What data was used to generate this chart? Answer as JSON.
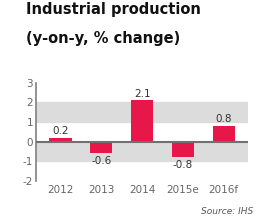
{
  "title_line1": "Industrial production",
  "title_line2": "(y-on-y, % change)",
  "categories": [
    "2012",
    "2013",
    "2014",
    "2015e",
    "2016f"
  ],
  "values": [
    0.2,
    -0.6,
    2.1,
    -0.8,
    0.8
  ],
  "bar_color": "#e8174a",
  "ylim": [
    -2,
    3
  ],
  "yticks": [
    -2,
    -1,
    0,
    1,
    2,
    3
  ],
  "source_text": "Source: IHS",
  "title_fontsize": 10.5,
  "tick_fontsize": 7.5,
  "label_fontsize": 7.5,
  "source_fontsize": 6.5,
  "background_color": "#ffffff",
  "band_color": "#dcdcdc",
  "zero_line_color": "#707070",
  "left_spine_color": "#808080",
  "bar_width": 0.55
}
